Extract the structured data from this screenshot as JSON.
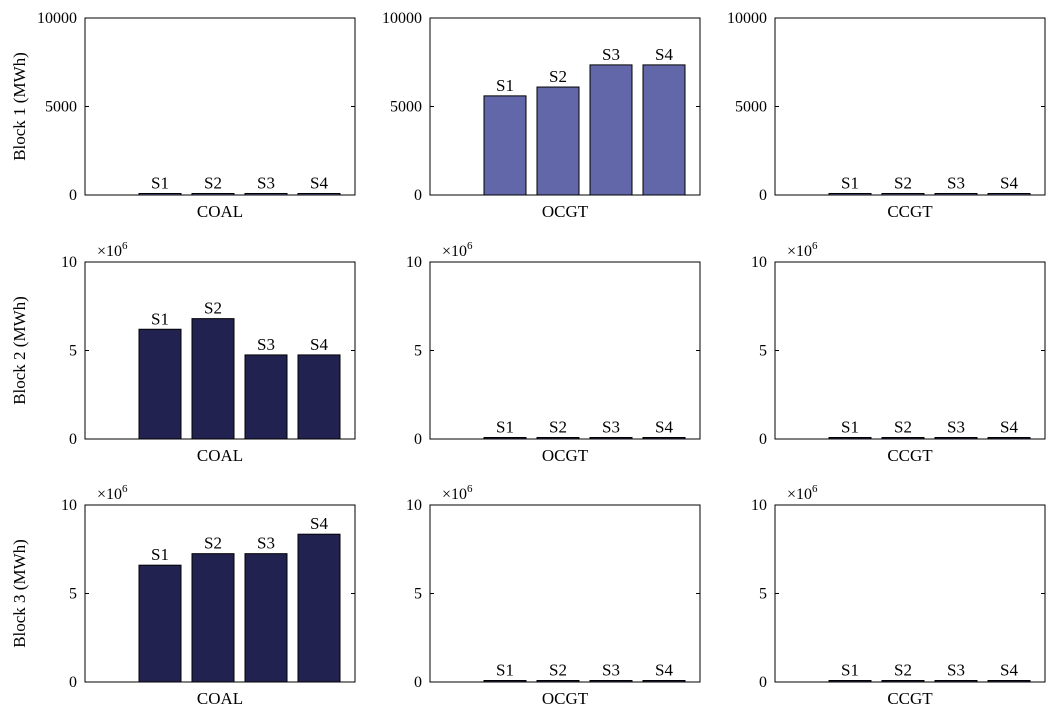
{
  "chart_data": [
    {
      "type": "bar",
      "row": 1,
      "col": 1,
      "categories": [
        "S1",
        "S2",
        "S3",
        "S4"
      ],
      "values": [
        0,
        0,
        0,
        0
      ],
      "xlabel": "COAL",
      "ylabel": "Block 1 (MWh)",
      "ylim": [
        0,
        10000
      ],
      "yticks": [
        "0",
        "5000",
        "10000"
      ],
      "exponent": "",
      "bar_color": "#6167a9"
    },
    {
      "type": "bar",
      "row": 1,
      "col": 2,
      "categories": [
        "S1",
        "S2",
        "S3",
        "S4"
      ],
      "values": [
        5600,
        6100,
        7350,
        7350
      ],
      "xlabel": "OCGT",
      "ylabel": "",
      "ylim": [
        0,
        10000
      ],
      "yticks": [
        "0",
        "5000",
        "10000"
      ],
      "exponent": "",
      "bar_color": "#6167a9"
    },
    {
      "type": "bar",
      "row": 1,
      "col": 3,
      "categories": [
        "S1",
        "S2",
        "S3",
        "S4"
      ],
      "values": [
        0,
        0,
        0,
        0
      ],
      "xlabel": "CCGT",
      "ylabel": "",
      "ylim": [
        0,
        10000
      ],
      "yticks": [
        "0",
        "5000",
        "10000"
      ],
      "exponent": "",
      "bar_color": "#6167a9"
    },
    {
      "type": "bar",
      "row": 2,
      "col": 1,
      "categories": [
        "S1",
        "S2",
        "S3",
        "S4"
      ],
      "values": [
        6.2,
        6.8,
        4.75,
        4.75
      ],
      "xlabel": "COAL",
      "ylabel": "Block 2 (MWh)",
      "ylim": [
        0,
        10
      ],
      "yticks": [
        "0",
        "5",
        "10"
      ],
      "exponent": "6",
      "bar_color": "#222250"
    },
    {
      "type": "bar",
      "row": 2,
      "col": 2,
      "categories": [
        "S1",
        "S2",
        "S3",
        "S4"
      ],
      "values": [
        0,
        0,
        0,
        0
      ],
      "xlabel": "OCGT",
      "ylabel": "",
      "ylim": [
        0,
        10
      ],
      "yticks": [
        "0",
        "5",
        "10"
      ],
      "exponent": "6",
      "bar_color": "#222250"
    },
    {
      "type": "bar",
      "row": 2,
      "col": 3,
      "categories": [
        "S1",
        "S2",
        "S3",
        "S4"
      ],
      "values": [
        0,
        0,
        0,
        0
      ],
      "xlabel": "CCGT",
      "ylabel": "",
      "ylim": [
        0,
        10
      ],
      "yticks": [
        "0",
        "5",
        "10"
      ],
      "exponent": "6",
      "bar_color": "#222250"
    },
    {
      "type": "bar",
      "row": 3,
      "col": 1,
      "categories": [
        "S1",
        "S2",
        "S3",
        "S4"
      ],
      "values": [
        6.6,
        7.25,
        7.25,
        8.35
      ],
      "xlabel": "COAL",
      "ylabel": "Block 3 (MWh)",
      "ylim": [
        0,
        10
      ],
      "yticks": [
        "0",
        "5",
        "10"
      ],
      "exponent": "6",
      "bar_color": "#222250"
    },
    {
      "type": "bar",
      "row": 3,
      "col": 2,
      "categories": [
        "S1",
        "S2",
        "S3",
        "S4"
      ],
      "values": [
        0,
        0,
        0,
        0
      ],
      "xlabel": "OCGT",
      "ylabel": "",
      "ylim": [
        0,
        10
      ],
      "yticks": [
        "0",
        "5",
        "10"
      ],
      "exponent": "6",
      "bar_color": "#222250"
    },
    {
      "type": "bar",
      "row": 3,
      "col": 3,
      "categories": [
        "S1",
        "S2",
        "S3",
        "S4"
      ],
      "values": [
        0,
        0,
        0,
        0
      ],
      "xlabel": "CCGT",
      "ylabel": "",
      "ylim": [
        0,
        10
      ],
      "yticks": [
        "0",
        "5",
        "10"
      ],
      "exponent": "6",
      "bar_color": "#222250"
    }
  ]
}
